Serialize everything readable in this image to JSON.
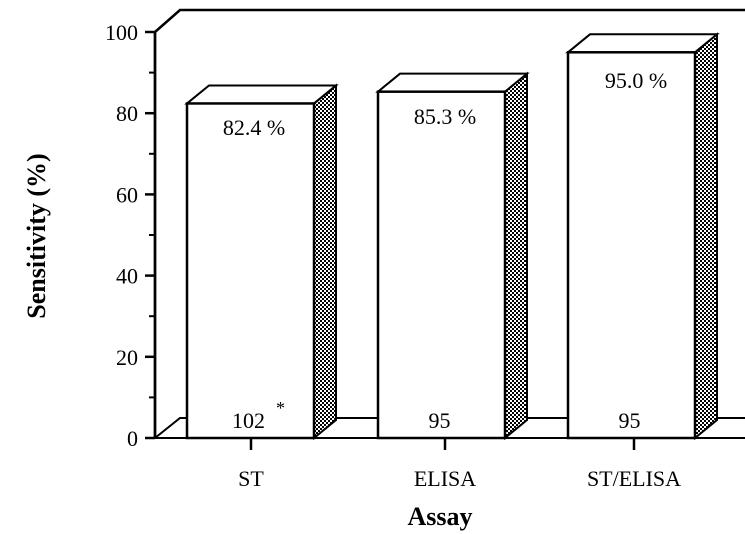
{
  "chart_data": {
    "type": "bar",
    "title": "",
    "xlabel": "Assay",
    "ylabel": "Sensitivity (%)",
    "ylim": [
      0,
      100
    ],
    "yticks": [
      "0",
      "20",
      "40",
      "60",
      "80",
      "100"
    ],
    "categories": [
      "ST",
      "ELISA",
      "ST/ELISA"
    ],
    "values": [
      82.4,
      85.3,
      95.0
    ],
    "value_labels": [
      "82.4 %",
      "85.3 %",
      "95.0 %"
    ],
    "n_labels": [
      "102",
      "95",
      "95"
    ],
    "footnote_marker": "*",
    "three_d": true,
    "grid": false,
    "legend": "none",
    "colors": {
      "bar_front": "#ffffff",
      "bar_side": "#888888",
      "stroke": "#000000"
    }
  }
}
